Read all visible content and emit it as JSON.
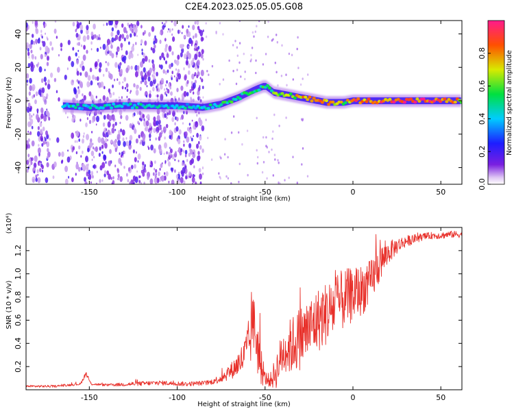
{
  "title": "C2E4.2023.025.05.05.G08",
  "chart_data": [
    {
      "type": "heatmap",
      "xlabel": "Height of straight line (km)",
      "ylabel": "Frequency (Hz)",
      "xlim": [
        -186,
        62
      ],
      "ylim": [
        -50,
        48
      ],
      "xticks": [
        -150,
        -100,
        -50,
        0,
        50
      ],
      "yticks": [
        -40,
        -20,
        0,
        20,
        40
      ],
      "colorbar": {
        "label": "Normalized spectral amplitude",
        "range": [
          0.0,
          1.0
        ],
        "ticks": [
          "0.0",
          "0.2",
          "0.4",
          "0.6",
          "0.8"
        ],
        "colormap": "rainbow (purple-blue-cyan-green-yellow-red-magenta)"
      },
      "ridge": {
        "x": [
          -165,
          -150,
          -135,
          -120,
          -100,
          -85,
          -75,
          -65,
          -55,
          -50,
          -45,
          -35,
          -25,
          -15,
          -5,
          0,
          20,
          40,
          62
        ],
        "freq": [
          -3,
          -4,
          -3,
          -3,
          -3,
          -4,
          -2,
          2,
          7,
          9,
          5,
          3,
          1,
          -1,
          -1,
          0,
          0,
          0,
          0
        ],
        "amplitude": [
          0.5,
          0.5,
          0.5,
          0.5,
          0.45,
          0.5,
          0.55,
          0.6,
          0.6,
          0.6,
          0.65,
          0.7,
          0.95,
          0.9,
          0.7,
          0.95,
          1.0,
          1.0,
          0.8
        ]
      },
      "background_noise_extent_x": [
        -186,
        -85
      ]
    },
    {
      "type": "line",
      "xlabel": "Height of straight line (km)",
      "ylabel": "SNR (10 * v/v)",
      "y_multiplier": "(x10⁴)",
      "xlim": [
        -186,
        62
      ],
      "ylim": [
        0.0,
        1.4
      ],
      "xticks": [
        -150,
        -100,
        -50,
        0,
        50
      ],
      "yticks": [
        "0.2",
        "0.4",
        "0.6",
        "0.8",
        "1.0",
        "1.2"
      ],
      "color": "#e8302a",
      "series": [
        {
          "x": [
            -186,
            -170,
            -155,
            -152,
            -149,
            -140,
            -125,
            -110,
            -95,
            -82,
            -75,
            -68,
            -62,
            -58,
            -56,
            -54,
            -52,
            -50,
            -47,
            -44,
            -40,
            -35,
            -30,
            -25,
            -20,
            -15,
            -10,
            -5,
            0,
            5,
            10,
            13,
            16,
            20,
            25,
            30,
            35,
            40,
            45,
            50,
            55,
            62
          ],
          "y": [
            0.03,
            0.03,
            0.05,
            0.14,
            0.05,
            0.04,
            0.05,
            0.06,
            0.05,
            0.06,
            0.1,
            0.18,
            0.28,
            0.45,
            0.55,
            0.35,
            0.15,
            0.1,
            0.08,
            0.15,
            0.32,
            0.38,
            0.45,
            0.52,
            0.6,
            0.66,
            0.72,
            0.78,
            0.82,
            0.86,
            0.92,
            1.02,
            1.1,
            1.18,
            1.24,
            1.28,
            1.3,
            1.32,
            1.33,
            1.33,
            1.34,
            1.34
          ],
          "spread": [
            0.01,
            0.01,
            0.01,
            0.02,
            0.01,
            0.01,
            0.02,
            0.02,
            0.02,
            0.02,
            0.04,
            0.08,
            0.15,
            0.25,
            0.3,
            0.25,
            0.12,
            0.06,
            0.06,
            0.15,
            0.2,
            0.25,
            0.28,
            0.28,
            0.28,
            0.28,
            0.28,
            0.26,
            0.24,
            0.22,
            0.2,
            0.18,
            0.15,
            0.1,
            0.07,
            0.05,
            0.04,
            0.03,
            0.03,
            0.03,
            0.03,
            0.03
          ]
        }
      ],
      "spikes": [
        {
          "x": -57,
          "y": 0.76
        },
        {
          "x": -53,
          "y": 0.66
        },
        {
          "x": -30,
          "y": 0.88
        },
        {
          "x": -10,
          "y": 1.03
        },
        {
          "x": 13,
          "y": 1.34
        }
      ]
    }
  ]
}
